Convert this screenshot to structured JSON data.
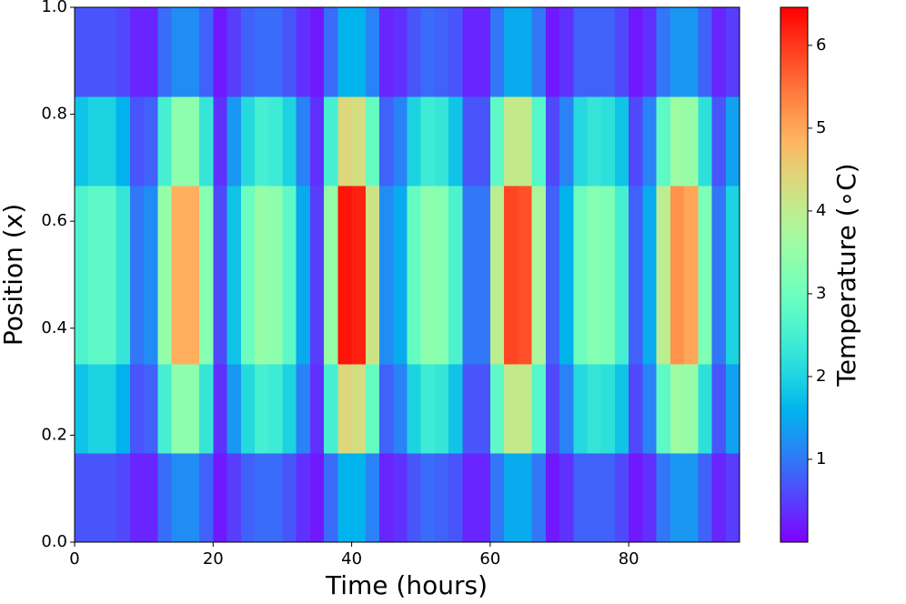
{
  "chart_data": {
    "type": "heatmap",
    "xlabel": "Time (hours)",
    "ylabel": "Position (x)",
    "colorbar_label": "Temperature (∘C)",
    "colormap": "rainbow",
    "xlim": [
      0,
      96
    ],
    "ylim": [
      0,
      1
    ],
    "xticks": [
      0,
      20,
      40,
      60,
      80
    ],
    "yticks": [
      {
        "value": 0,
        "label": "0.0"
      },
      {
        "value": 0.2,
        "label": "0.2"
      },
      {
        "value": 0.4,
        "label": "0.4"
      },
      {
        "value": 0.6,
        "label": "0.6"
      },
      {
        "value": 0.8,
        "label": "0.8"
      },
      {
        "value": 1,
        "label": "1.0"
      }
    ],
    "clim": [
      0,
      6.46
    ],
    "cticks": [
      1,
      2,
      3,
      4,
      5,
      6
    ],
    "z": [
      [
        0.7,
        0.7,
        0.7,
        0.6,
        0.3,
        0.3,
        0.9,
        1.2,
        1.2,
        0.8,
        0.2,
        0.5,
        0.8,
        0.9,
        0.9,
        0.7,
        0.4,
        0.2,
        0.9,
        1.6,
        1.6,
        1.1,
        0.3,
        0.4,
        0.7,
        0.9,
        0.8,
        0.7,
        0.3,
        0.3,
        1.0,
        1.5,
        1.5,
        1.0,
        0.2,
        0.4,
        0.8,
        0.8,
        0.8,
        0.6,
        0.2,
        0.4,
        1.0,
        1.3,
        1.3,
        0.8,
        0.3,
        0.5
      ],
      [
        1.8,
        2.0,
        2.0,
        1.6,
        0.7,
        0.8,
        2.5,
        3.4,
        3.4,
        2.3,
        0.4,
        1.3,
        2.1,
        2.5,
        2.4,
        2.0,
        1.1,
        0.4,
        2.5,
        4.4,
        4.3,
        2.9,
        0.8,
        1.1,
        2.0,
        2.4,
        2.3,
        1.8,
        0.7,
        0.7,
        2.8,
        4.1,
        4.1,
        2.7,
        0.6,
        1.1,
        2.1,
        2.3,
        2.2,
        1.8,
        0.6,
        1.1,
        2.8,
        3.6,
        3.5,
        2.2,
        0.7,
        1.4
      ],
      [
        2.6,
        2.8,
        2.8,
        2.3,
        1.0,
        1.2,
        3.5,
        4.9,
        4.9,
        3.3,
        0.6,
        1.8,
        3.0,
        3.5,
        3.4,
        2.8,
        1.5,
        0.5,
        3.5,
        6.3,
        6.2,
        4.2,
        1.2,
        1.5,
        2.9,
        3.4,
        3.3,
        2.6,
        1.0,
        1.0,
        4.0,
        5.9,
        5.8,
        3.8,
        0.8,
        1.6,
        3.0,
        3.3,
        3.2,
        2.5,
        0.8,
        1.5,
        4.0,
        5.2,
        5.0,
        3.2,
        1.0,
        2.0
      ],
      [
        2.6,
        2.8,
        2.8,
        2.3,
        1.0,
        1.2,
        3.5,
        4.9,
        4.9,
        3.3,
        0.6,
        1.8,
        3.0,
        3.5,
        3.4,
        2.8,
        1.5,
        0.5,
        3.5,
        6.3,
        6.2,
        4.2,
        1.2,
        1.5,
        2.9,
        3.4,
        3.3,
        2.6,
        1.0,
        1.0,
        4.0,
        5.9,
        5.8,
        3.8,
        0.8,
        1.6,
        3.0,
        3.3,
        3.2,
        2.5,
        0.8,
        1.5,
        4.0,
        5.2,
        5.0,
        3.2,
        1.0,
        2.0
      ],
      [
        1.8,
        2.0,
        2.0,
        1.6,
        0.7,
        0.8,
        2.5,
        3.4,
        3.4,
        2.3,
        0.4,
        1.3,
        2.1,
        2.5,
        2.4,
        2.0,
        1.1,
        0.4,
        2.5,
        4.4,
        4.3,
        2.9,
        0.8,
        1.1,
        2.0,
        2.4,
        2.3,
        1.8,
        0.7,
        0.7,
        2.8,
        4.1,
        4.1,
        2.7,
        0.6,
        1.1,
        2.1,
        2.3,
        2.2,
        1.8,
        0.6,
        1.1,
        2.8,
        3.6,
        3.5,
        2.2,
        0.7,
        1.4
      ],
      [
        0.7,
        0.7,
        0.7,
        0.6,
        0.3,
        0.3,
        0.9,
        1.2,
        1.2,
        0.8,
        0.2,
        0.5,
        0.8,
        0.9,
        0.9,
        0.7,
        0.4,
        0.2,
        0.9,
        1.6,
        1.6,
        1.1,
        0.3,
        0.4,
        0.7,
        0.9,
        0.8,
        0.7,
        0.3,
        0.3,
        1.0,
        1.5,
        1.5,
        1.0,
        0.2,
        0.4,
        0.8,
        0.8,
        0.8,
        0.6,
        0.2,
        0.4,
        1.0,
        1.3,
        1.3,
        0.8,
        0.3,
        0.5
      ]
    ]
  }
}
